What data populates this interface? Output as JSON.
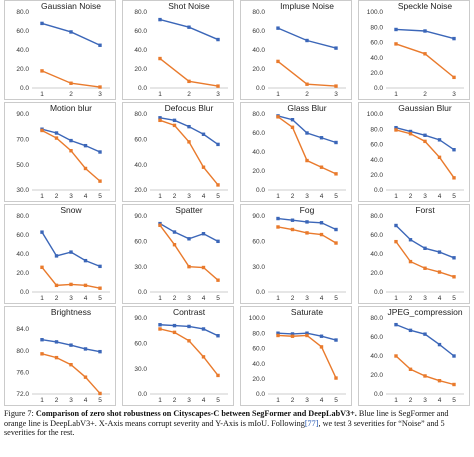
{
  "colors": {
    "segformer": "#3b66b8",
    "deeplab": "#e97a2c",
    "frame": "#bfbfbf"
  },
  "chart_data": [
    {
      "type": "line",
      "title": "Gaussian Noise",
      "x": [
        1,
        2,
        3
      ],
      "ylim": [
        0,
        80
      ],
      "yticks": [
        "0.0",
        "20.0",
        "40.0",
        "60.0",
        "80.0"
      ],
      "series": [
        {
          "values": [
            68,
            59,
            45
          ]
        },
        {
          "values": [
            18,
            5,
            1
          ]
        }
      ]
    },
    {
      "type": "line",
      "title": "Shot Noise",
      "x": [
        1,
        2,
        3
      ],
      "ylim": [
        0,
        80
      ],
      "yticks": [
        "0.0",
        "20.0",
        "40.0",
        "60.0",
        "80.0"
      ],
      "series": [
        {
          "values": [
            72,
            64,
            51
          ]
        },
        {
          "values": [
            31,
            7,
            2
          ]
        }
      ]
    },
    {
      "type": "line",
      "title": "Impluse Noise",
      "x": [
        1,
        2,
        3
      ],
      "ylim": [
        0,
        80
      ],
      "yticks": [
        "0.0",
        "20.0",
        "40.0",
        "60.0",
        "80.0"
      ],
      "series": [
        {
          "values": [
            63,
            50,
            42
          ]
        },
        {
          "values": [
            28,
            4,
            2
          ]
        }
      ]
    },
    {
      "type": "line",
      "title": "Speckle Noise",
      "x": [
        1,
        2,
        3
      ],
      "ylim": [
        0,
        100
      ],
      "yticks": [
        "0.0",
        "20.0",
        "40.0",
        "60.0",
        "80.0",
        "100.0"
      ],
      "series": [
        {
          "values": [
            77,
            75,
            65
          ]
        },
        {
          "values": [
            58,
            45,
            14
          ]
        }
      ]
    },
    {
      "type": "line",
      "title": "Motion blur",
      "x": [
        1,
        2,
        3,
        4,
        5
      ],
      "ylim": [
        30,
        90
      ],
      "yticks": [
        "30.0",
        "50.0",
        "70.0",
        "90.0"
      ],
      "series": [
        {
          "values": [
            78,
            75,
            69,
            65,
            60
          ]
        },
        {
          "values": [
            77,
            71,
            61,
            47,
            37
          ]
        }
      ]
    },
    {
      "type": "line",
      "title": "Defocus Blur",
      "x": [
        1,
        2,
        3,
        4,
        5
      ],
      "ylim": [
        20,
        80
      ],
      "yticks": [
        "20.0",
        "40.0",
        "60.0",
        "80.0"
      ],
      "series": [
        {
          "values": [
            77,
            75,
            70,
            64,
            56
          ]
        },
        {
          "values": [
            75,
            71,
            58,
            38,
            24
          ]
        }
      ]
    },
    {
      "type": "line",
      "title": "Glass Blur",
      "x": [
        1,
        2,
        3,
        4,
        5
      ],
      "ylim": [
        0,
        80
      ],
      "yticks": [
        "0.0",
        "20.0",
        "40.0",
        "60.0",
        "80.0"
      ],
      "series": [
        {
          "values": [
            78,
            74,
            60,
            55,
            50
          ]
        },
        {
          "values": [
            77,
            66,
            31,
            24,
            17
          ]
        }
      ]
    },
    {
      "type": "line",
      "title": "Gaussian Blur",
      "x": [
        1,
        2,
        3,
        4,
        5
      ],
      "ylim": [
        0,
        100
      ],
      "yticks": [
        "0.0",
        "20.0",
        "40.0",
        "60.0",
        "80.0",
        "100.0"
      ],
      "series": [
        {
          "values": [
            82,
            77,
            72,
            66,
            53
          ]
        },
        {
          "values": [
            79,
            74,
            64,
            43,
            16
          ]
        }
      ]
    },
    {
      "type": "line",
      "title": "Snow",
      "x": [
        1,
        2,
        3,
        4,
        5
      ],
      "ylim": [
        0,
        80
      ],
      "yticks": [
        "0.0",
        "20.0",
        "40.0",
        "60.0",
        "80.0"
      ],
      "series": [
        {
          "values": [
            63,
            38,
            42,
            33,
            27
          ]
        },
        {
          "values": [
            26,
            7,
            8,
            7,
            4
          ]
        }
      ]
    },
    {
      "type": "line",
      "title": "Spatter",
      "x": [
        1,
        2,
        3,
        4,
        5
      ],
      "ylim": [
        0,
        90
      ],
      "yticks": [
        "0.0",
        "30.0",
        "60.0",
        "90.0"
      ],
      "series": [
        {
          "values": [
            81,
            71,
            63,
            69,
            60
          ]
        },
        {
          "values": [
            79,
            56,
            30,
            29,
            14
          ]
        }
      ]
    },
    {
      "type": "line",
      "title": "Fog",
      "x": [
        1,
        2,
        3,
        4,
        5
      ],
      "ylim": [
        0,
        90
      ],
      "yticks": [
        "0.0",
        "30.0",
        "60.0",
        "90.0"
      ],
      "series": [
        {
          "values": [
            87,
            85,
            83,
            82,
            74
          ]
        },
        {
          "values": [
            77,
            74,
            70,
            68,
            58
          ]
        }
      ]
    },
    {
      "type": "line",
      "title": "Forst",
      "x": [
        1,
        2,
        3,
        4,
        5
      ],
      "ylim": [
        0,
        80
      ],
      "yticks": [
        "0.0",
        "20.0",
        "40.0",
        "60.0",
        "80.0"
      ],
      "series": [
        {
          "values": [
            70,
            55,
            46,
            42,
            36
          ]
        },
        {
          "values": [
            53,
            32,
            25,
            21,
            16
          ]
        }
      ]
    },
    {
      "type": "line",
      "title": "Brightness",
      "x": [
        1,
        2,
        3,
        4,
        5
      ],
      "ylim": [
        72,
        86
      ],
      "yticks": [
        "72.0",
        "76.0",
        "80.0",
        "84.0"
      ],
      "series": [
        {
          "values": [
            82.0,
            81.6,
            81.0,
            80.3,
            79.8
          ]
        },
        {
          "values": [
            79.4,
            78.7,
            77.4,
            75.1,
            72.1
          ]
        }
      ]
    },
    {
      "type": "line",
      "title": "Contrast",
      "x": [
        1,
        2,
        3,
        4,
        5
      ],
      "ylim": [
        0,
        90
      ],
      "yticks": [
        "0.0",
        "30.0",
        "60.0",
        "90.0"
      ],
      "series": [
        {
          "values": [
            82,
            81,
            80,
            77,
            69
          ]
        },
        {
          "values": [
            77,
            73,
            63,
            44,
            22
          ]
        }
      ]
    },
    {
      "type": "line",
      "title": "Saturate",
      "x": [
        1,
        2,
        3,
        4,
        5
      ],
      "ylim": [
        0,
        100
      ],
      "yticks": [
        "0.0",
        "20.0",
        "40.0",
        "60.0",
        "80.0",
        "100.0"
      ],
      "series": [
        {
          "values": [
            80,
            79,
            80,
            76,
            71
          ]
        },
        {
          "values": [
            77,
            76,
            77,
            62,
            21
          ]
        }
      ]
    },
    {
      "type": "line",
      "title": "JPEG_compression",
      "x": [
        1,
        2,
        3,
        4,
        5
      ],
      "ylim": [
        0,
        80
      ],
      "yticks": [
        "0.0",
        "20.0",
        "40.0",
        "60.0",
        "80.0"
      ],
      "series": [
        {
          "values": [
            73,
            67,
            63,
            52,
            40
          ]
        },
        {
          "values": [
            40,
            26,
            19,
            14,
            10
          ]
        }
      ]
    }
  ],
  "caption": {
    "label": "Figure 7: ",
    "bold": "Comparison of zero shot robustness on Cityscapes-C between SegFormer and DeepLabV3+.",
    "text1": " Blue line is SegFormer and orange line is DeepLabV3+. X-Axis means corrupt severity and Y-Axis is mIoU. Following",
    "ref": "[77]",
    "text2": ", we test 3 severities for “Noise” and 5 severities for the rest."
  }
}
